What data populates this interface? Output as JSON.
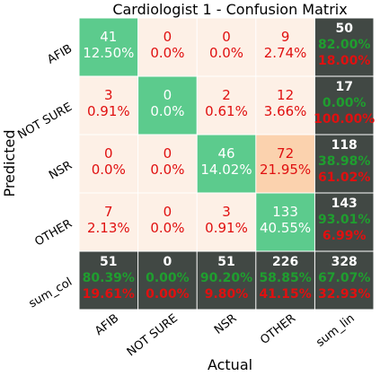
{
  "chart_data": {
    "type": "heatmap",
    "title": "Cardiologist 1 - Confusion Matrix",
    "xlabel": "Actual",
    "ylabel": "Predicted",
    "x_ticks": [
      "AFIB",
      "NOT SURE",
      "NSR",
      "OTHER",
      "sum_lin"
    ],
    "y_ticks": [
      "AFIB",
      "NOT SURE",
      "NSR",
      "OTHER",
      "sum_col"
    ],
    "rows": [
      {
        "cells": [
          {
            "count": "41",
            "pct": "12.50%",
            "kind": "diag"
          },
          {
            "count": "0",
            "pct": "0.0%",
            "kind": "off"
          },
          {
            "count": "0",
            "pct": "0.0%",
            "kind": "off"
          },
          {
            "count": "9",
            "pct": "2.74%",
            "kind": "off"
          }
        ],
        "sum": {
          "count": "50",
          "good": "82.00%",
          "bad": "18.00%"
        }
      },
      {
        "cells": [
          {
            "count": "3",
            "pct": "0.91%",
            "kind": "off"
          },
          {
            "count": "0",
            "pct": "0.0%",
            "kind": "diag"
          },
          {
            "count": "2",
            "pct": "0.61%",
            "kind": "off"
          },
          {
            "count": "12",
            "pct": "3.66%",
            "kind": "off"
          }
        ],
        "sum": {
          "count": "17",
          "good": "0.00%",
          "bad": "100.00%"
        }
      },
      {
        "cells": [
          {
            "count": "0",
            "pct": "0.0%",
            "kind": "off"
          },
          {
            "count": "0",
            "pct": "0.0%",
            "kind": "off"
          },
          {
            "count": "46",
            "pct": "14.02%",
            "kind": "diag"
          },
          {
            "count": "72",
            "pct": "21.95%",
            "kind": "hot"
          }
        ],
        "sum": {
          "count": "118",
          "good": "38.98%",
          "bad": "61.02%"
        }
      },
      {
        "cells": [
          {
            "count": "7",
            "pct": "2.13%",
            "kind": "off"
          },
          {
            "count": "0",
            "pct": "0.0%",
            "kind": "off"
          },
          {
            "count": "3",
            "pct": "0.91%",
            "kind": "off"
          },
          {
            "count": "133",
            "pct": "40.55%",
            "kind": "diag"
          }
        ],
        "sum": {
          "count": "143",
          "good": "93.01%",
          "bad": "6.99%"
        }
      }
    ],
    "col_sums": [
      {
        "count": "51",
        "good": "80.39%",
        "bad": "19.61%"
      },
      {
        "count": "0",
        "good": "0.00%",
        "bad": "0.00%"
      },
      {
        "count": "51",
        "good": "90.20%",
        "bad": "9.80%"
      },
      {
        "count": "226",
        "good": "58.85%",
        "bad": "41.15%"
      }
    ],
    "total": {
      "count": "328",
      "good": "67.07%",
      "bad": "32.93%"
    },
    "colors": {
      "diag": "#5ccb8d",
      "off": "#fdf0e6",
      "hot": "#fbd2ae",
      "sum_bg": "#414844",
      "sum_count": "#ffffff",
      "good": "#1f9e2f",
      "bad": "#e01010",
      "cell_text_dark": "#e01010",
      "cell_text_light": "#ffffff"
    }
  }
}
